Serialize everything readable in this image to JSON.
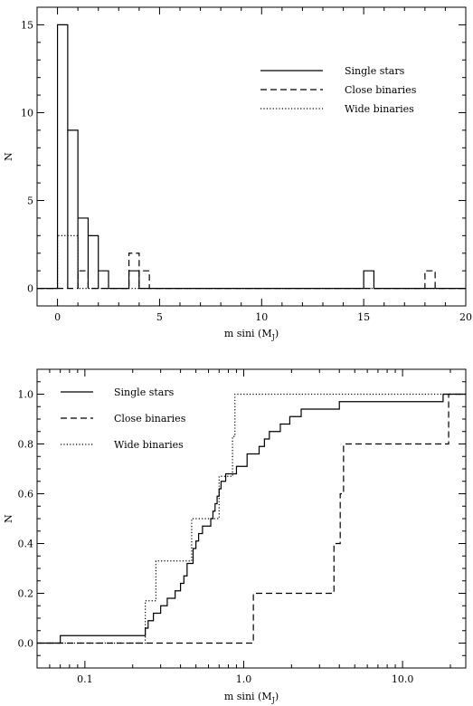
{
  "chart_data": [
    {
      "type": "histogram",
      "xlabel": "m sini (M_J)",
      "ylabel": "N",
      "xlim": [
        -1,
        20
      ],
      "ylim": [
        -1,
        16
      ],
      "xticks": [
        0,
        5,
        10,
        15,
        20
      ],
      "yticks": [
        0,
        5,
        10,
        15
      ],
      "bin_width": 0.5,
      "legend_position": "upper-right",
      "series": [
        {
          "name": "Single stars",
          "style": "solid",
          "bins": [
            {
              "x0": 0.0,
              "x1": 0.5,
              "count": 15
            },
            {
              "x0": 0.5,
              "x1": 1.0,
              "count": 9
            },
            {
              "x0": 1.0,
              "x1": 1.5,
              "count": 4
            },
            {
              "x0": 1.5,
              "x1": 2.0,
              "count": 3
            },
            {
              "x0": 2.0,
              "x1": 2.5,
              "count": 1
            },
            {
              "x0": 3.5,
              "x1": 4.0,
              "count": 1
            },
            {
              "x0": 15.0,
              "x1": 15.5,
              "count": 1
            }
          ]
        },
        {
          "name": "Close binaries",
          "style": "dashed",
          "bins": [
            {
              "x0": 1.0,
              "x1": 1.5,
              "count": 1
            },
            {
              "x0": 3.5,
              "x1": 4.0,
              "count": 2
            },
            {
              "x0": 4.0,
              "x1": 4.5,
              "count": 1
            },
            {
              "x0": 18.0,
              "x1": 18.5,
              "count": 1
            }
          ]
        },
        {
          "name": "Wide binaries",
          "style": "dotted",
          "bins": [
            {
              "x0": 0.0,
              "x1": 1.0,
              "count": 3
            }
          ]
        }
      ]
    },
    {
      "type": "line",
      "subtype": "cumulative-step",
      "xlabel": "m sini (M_J)",
      "ylabel": "N",
      "xscale": "log",
      "xlim": [
        0.05,
        25
      ],
      "ylim": [
        -0.1,
        1.1
      ],
      "xticks": [
        0.1,
        1.0,
        10.0
      ],
      "yticks": [
        0.0,
        0.2,
        0.4,
        0.6,
        0.8,
        1.0
      ],
      "legend_position": "upper-left",
      "series": [
        {
          "name": "Single stars",
          "style": "solid",
          "steps": [
            {
              "x": 0.07,
              "y": 0.03
            },
            {
              "x": 0.24,
              "y": 0.06
            },
            {
              "x": 0.25,
              "y": 0.09
            },
            {
              "x": 0.27,
              "y": 0.12
            },
            {
              "x": 0.3,
              "y": 0.15
            },
            {
              "x": 0.33,
              "y": 0.18
            },
            {
              "x": 0.37,
              "y": 0.21
            },
            {
              "x": 0.4,
              "y": 0.24
            },
            {
              "x": 0.42,
              "y": 0.27
            },
            {
              "x": 0.44,
              "y": 0.32
            },
            {
              "x": 0.48,
              "y": 0.38
            },
            {
              "x": 0.5,
              "y": 0.41
            },
            {
              "x": 0.52,
              "y": 0.44
            },
            {
              "x": 0.55,
              "y": 0.47
            },
            {
              "x": 0.62,
              "y": 0.5
            },
            {
              "x": 0.64,
              "y": 0.53
            },
            {
              "x": 0.66,
              "y": 0.56
            },
            {
              "x": 0.68,
              "y": 0.59
            },
            {
              "x": 0.7,
              "y": 0.62
            },
            {
              "x": 0.72,
              "y": 0.65
            },
            {
              "x": 0.77,
              "y": 0.68
            },
            {
              "x": 0.9,
              "y": 0.71
            },
            {
              "x": 1.05,
              "y": 0.76
            },
            {
              "x": 1.25,
              "y": 0.79
            },
            {
              "x": 1.35,
              "y": 0.82
            },
            {
              "x": 1.45,
              "y": 0.85
            },
            {
              "x": 1.7,
              "y": 0.88
            },
            {
              "x": 1.95,
              "y": 0.91
            },
            {
              "x": 2.3,
              "y": 0.94
            },
            {
              "x": 4.0,
              "y": 0.97
            },
            {
              "x": 18.0,
              "y": 1.0
            }
          ]
        },
        {
          "name": "Close binaries",
          "style": "dashed",
          "steps": [
            {
              "x": 1.15,
              "y": 0.2
            },
            {
              "x": 3.7,
              "y": 0.4
            },
            {
              "x": 4.05,
              "y": 0.6
            },
            {
              "x": 4.25,
              "y": 0.8
            },
            {
              "x": 19.5,
              "y": 1.0
            }
          ]
        },
        {
          "name": "Wide binaries",
          "style": "dotted",
          "steps": [
            {
              "x": 0.24,
              "y": 0.17
            },
            {
              "x": 0.28,
              "y": 0.33
            },
            {
              "x": 0.47,
              "y": 0.5
            },
            {
              "x": 0.7,
              "y": 0.67
            },
            {
              "x": 0.85,
              "y": 0.83
            },
            {
              "x": 0.88,
              "y": 1.0
            }
          ]
        }
      ]
    }
  ]
}
